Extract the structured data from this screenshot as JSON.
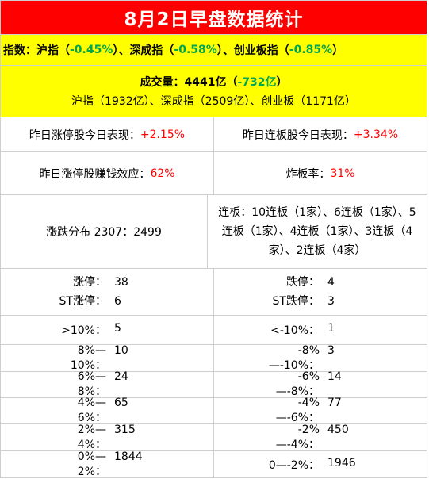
{
  "title": "8月2日早盘数据统计",
  "index": {
    "label": "指数：",
    "sh_name": "沪指（",
    "sh_val": "-0.45%",
    "sep1": "）、深成指（",
    "sz_val": "-0.58%",
    "sep2": "）、创业板指（",
    "cy_val": "-0.85%",
    "end": "）"
  },
  "volume": {
    "label": "成交量：4441亿（",
    "change": "-732亿",
    "end": "）",
    "breakdown": "沪指（1932亿）、深成指（2509亿）、创业板（1171亿）"
  },
  "perf": {
    "limit_up_label": "昨日涨停股今日表现：",
    "limit_up_val": "+2.15%",
    "consec_label": "昨日连板股今日表现：",
    "consec_val": "+3.34%"
  },
  "effect": {
    "profit_label": "昨日涨停股赚钱效应：",
    "profit_val": "62%",
    "blast_label": "炸板率：",
    "blast_val": "31%"
  },
  "distribution": {
    "label": "涨跌分布 2307：2499",
    "consecutive": "连板：10连板（1家）、6连板（1家）、5连板（1家）、4连板（1家）、3连板（4家）、2连板（4家）"
  },
  "limits": {
    "up_label": "涨停：",
    "up_val": "38",
    "st_up_label": "ST涨停：",
    "st_up_val": "6",
    "down_label": "跌停：",
    "down_val": "4",
    "st_down_label": "ST跌停：",
    "st_down_val": "3"
  },
  "ranges": [
    {
      "up_label": ">10%：",
      "up_val": "5",
      "down_label": "<-10%：",
      "down_val": "1"
    },
    {
      "up_label": "8%—10%：",
      "up_val": "10",
      "down_label": "-8%—-10%：",
      "down_val": "3"
    },
    {
      "up_label": "6%—8%：",
      "up_val": "24",
      "down_label": "-6%—-8%：",
      "down_val": "14"
    },
    {
      "up_label": "4%—6%：",
      "up_val": "65",
      "down_label": "-4%—-6%：",
      "down_val": "77"
    },
    {
      "up_label": "2%—4%：",
      "up_val": "315",
      "down_label": "-2%—-4%：",
      "down_val": "450"
    },
    {
      "up_label": "0%—2%：",
      "up_val": "1844",
      "down_label": "0—-2%：",
      "down_val": "1946"
    }
  ],
  "colors": {
    "title_bg": "#ff0000",
    "highlight_bg": "#ffff00",
    "up": "#ff0000",
    "down": "#00a651"
  }
}
